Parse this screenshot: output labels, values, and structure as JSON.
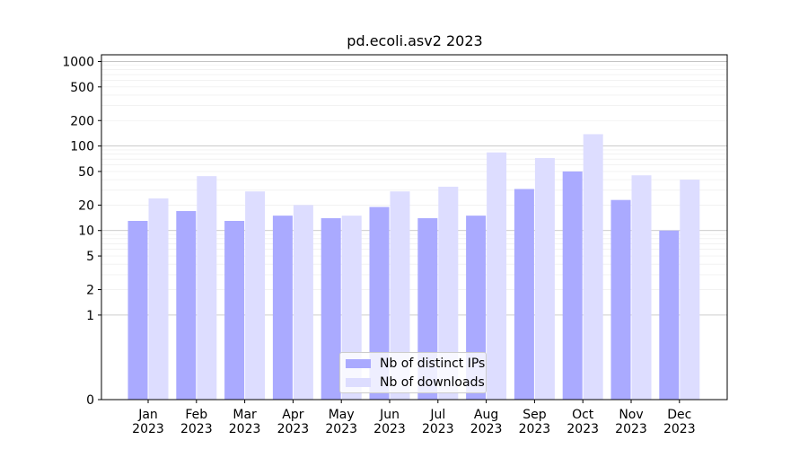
{
  "chart_data": {
    "type": "bar",
    "title": "pd.ecoli.asv2 2023",
    "xlabel": "",
    "ylabel": "",
    "y_scale": "symlog",
    "ylim": [
      0,
      1200
    ],
    "y_ticks": [
      0,
      1,
      2,
      5,
      10,
      20,
      50,
      100,
      200,
      500,
      1000
    ],
    "y_tick_labels": [
      "0",
      "1",
      "2",
      "5",
      "10",
      "20",
      "50",
      "100",
      "200",
      "500",
      "1000"
    ],
    "categories": [
      "Jan\n2023",
      "Feb\n2023",
      "Mar\n2023",
      "Apr\n2023",
      "May\n2023",
      "Jun\n2023",
      "Jul\n2023",
      "Aug\n2023",
      "Sep\n2023",
      "Oct\n2023",
      "Nov\n2023",
      "Dec\n2023"
    ],
    "series": [
      {
        "name": "Nb of distinct IPs",
        "color": "#aaaaff",
        "values": [
          13,
          17,
          13,
          15,
          14,
          19,
          14,
          15,
          31,
          50,
          23,
          10
        ]
      },
      {
        "name": "Nb of downloads",
        "color": "#ddddff",
        "values": [
          24,
          44,
          29,
          20,
          15,
          29,
          33,
          84,
          72,
          138,
          45,
          40
        ]
      }
    ],
    "grid": true,
    "legend_position": "bottom-center"
  }
}
